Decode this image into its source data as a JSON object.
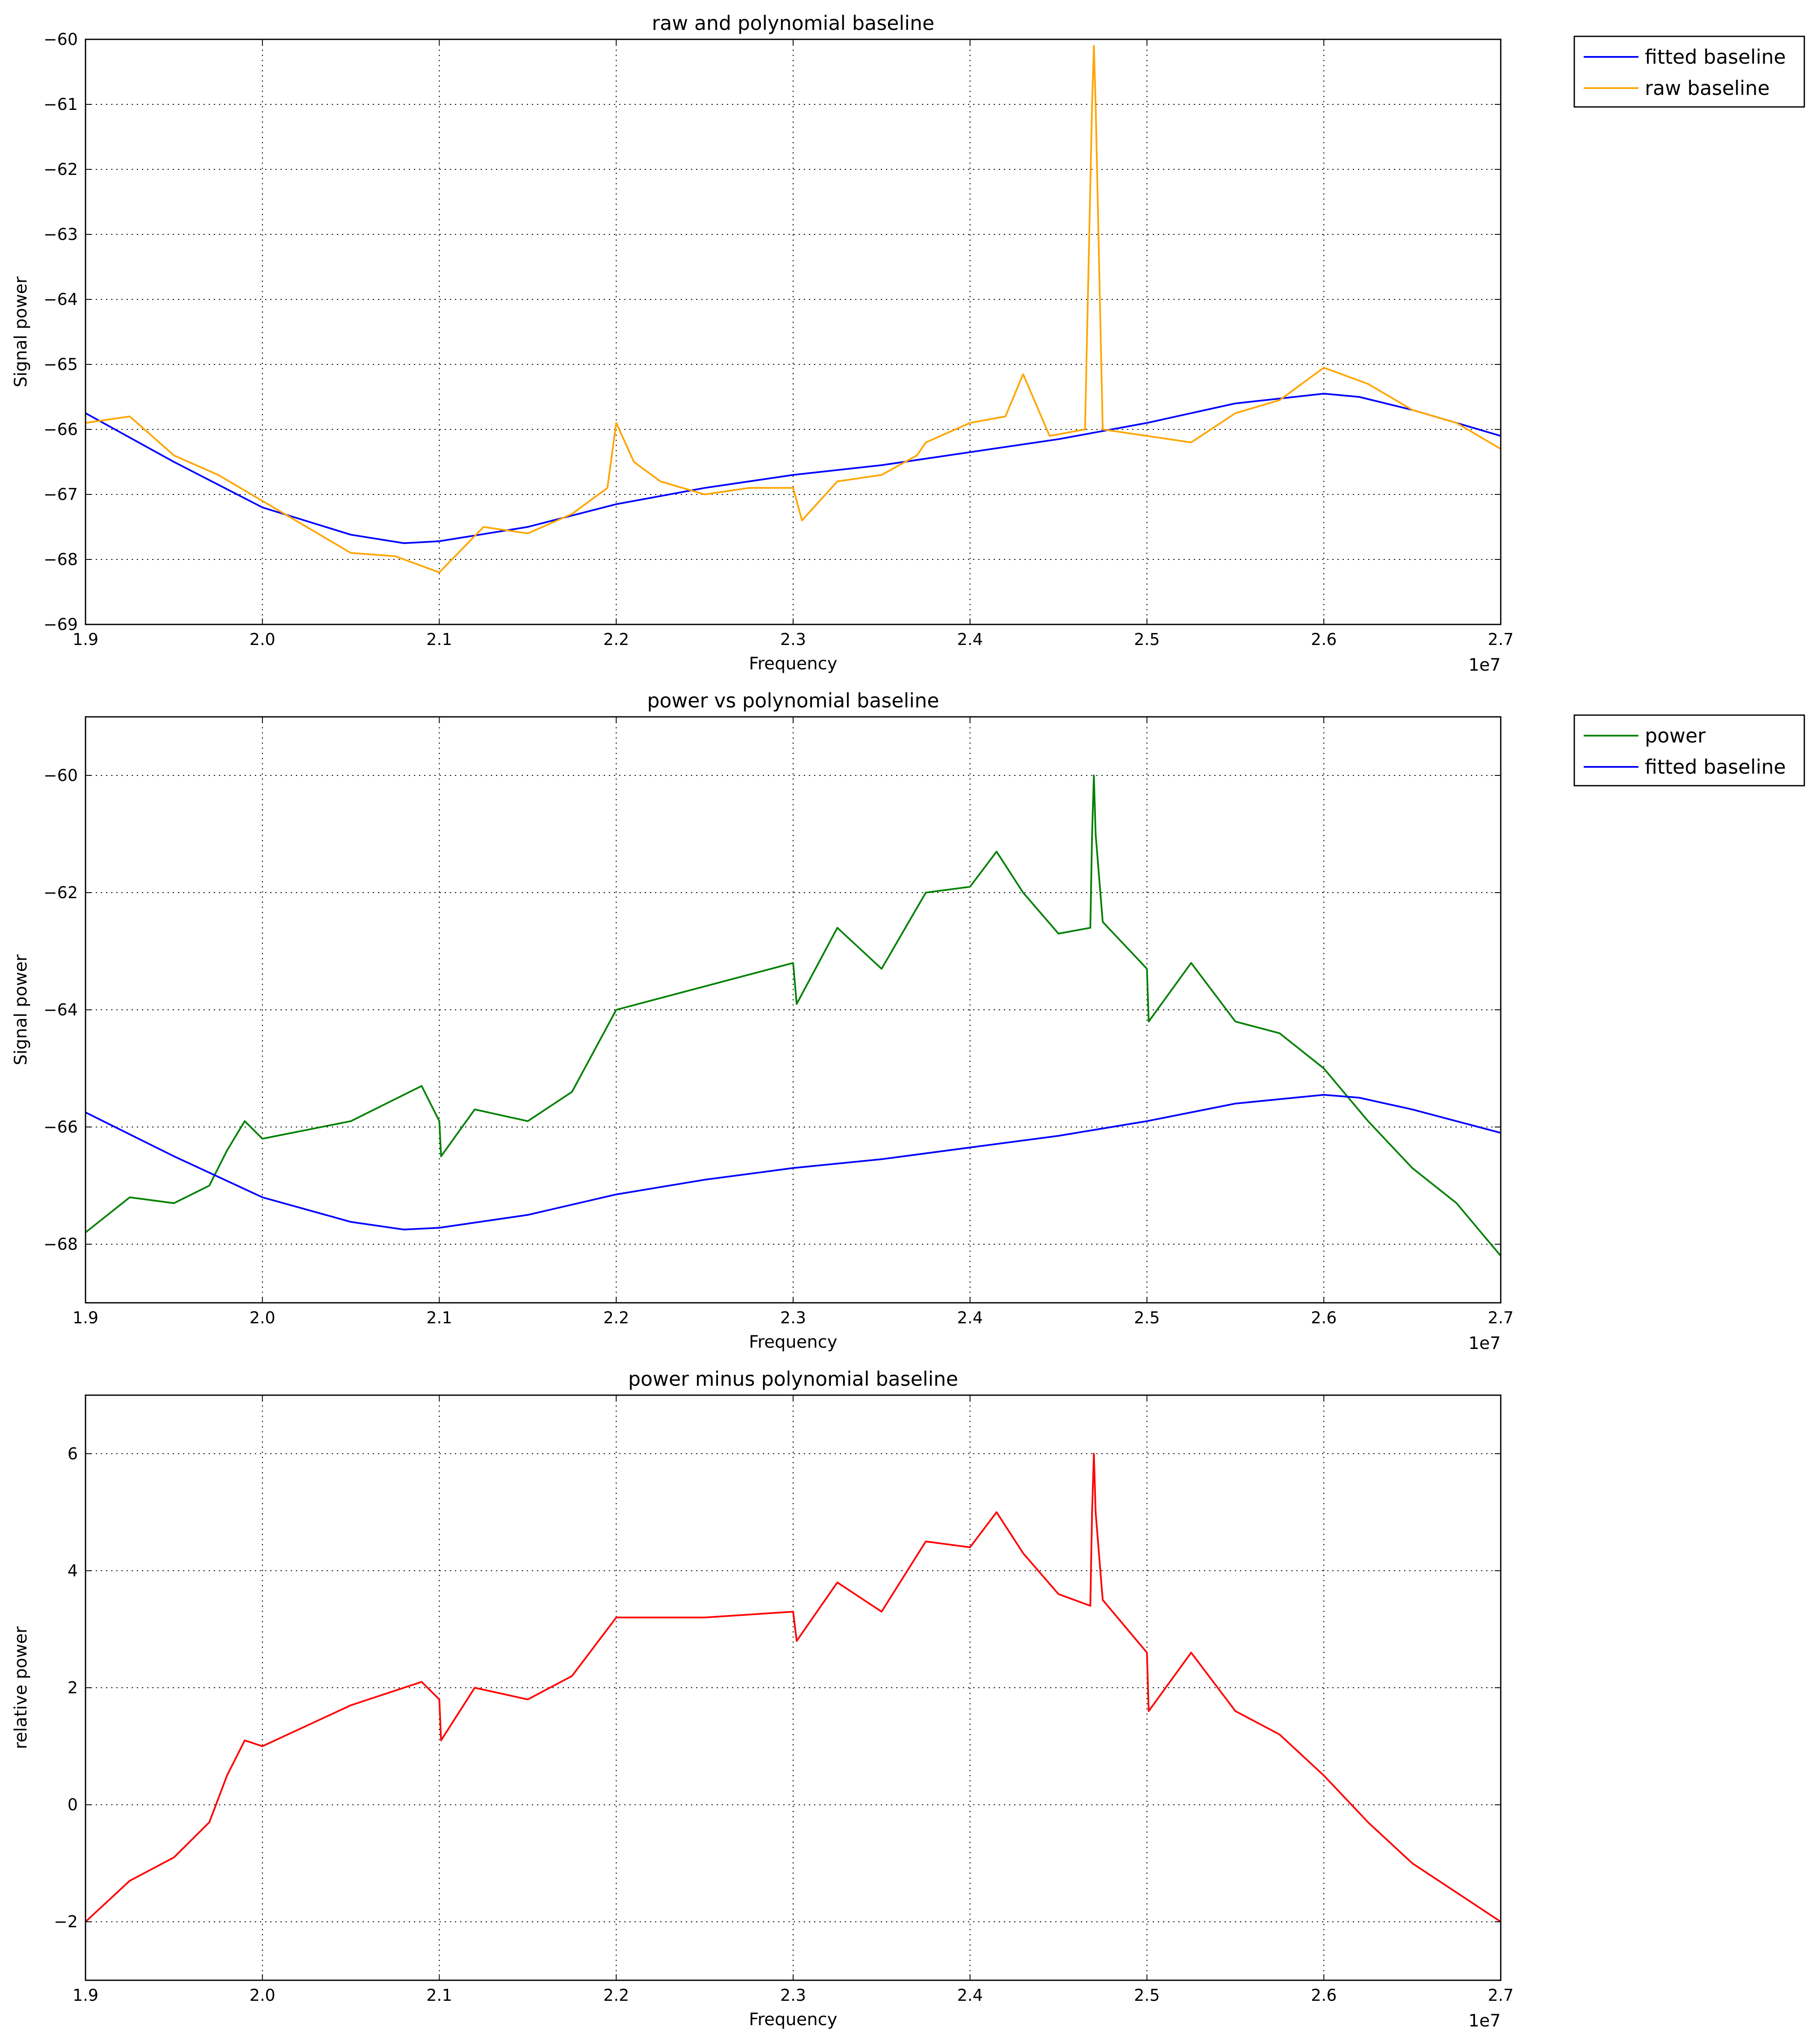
{
  "chart_data": [
    {
      "type": "line",
      "title": "raw and polynomial baseline",
      "xlabel": "Frequency",
      "ylabel": "Signal power",
      "x_offset_label": "1e7",
      "xlim": [
        1.9,
        2.7
      ],
      "ylim": [
        -69,
        -60
      ],
      "x_ticks": [
        1.9,
        2.0,
        2.1,
        2.2,
        2.3,
        2.4,
        2.5,
        2.6,
        2.7
      ],
      "x_tick_labels": [
        "1.9",
        "2.0",
        "2.1",
        "2.2",
        "2.3",
        "2.4",
        "2.5",
        "2.6",
        "2.7"
      ],
      "y_ticks": [
        -69,
        -68,
        -67,
        -66,
        -65,
        -64,
        -63,
        -62,
        -61,
        -60
      ],
      "y_tick_labels": [
        "−69",
        "−68",
        "−67",
        "−66",
        "−65",
        "−64",
        "−63",
        "−62",
        "−61",
        "−60"
      ],
      "grid": true,
      "legend_position": "outside-top-right",
      "series": [
        {
          "name": "fitted baseline",
          "color": "#0000ff",
          "x": [
            1.9,
            1.95,
            2.0,
            2.05,
            2.08,
            2.1,
            2.15,
            2.2,
            2.25,
            2.3,
            2.35,
            2.4,
            2.45,
            2.5,
            2.55,
            2.6,
            2.62,
            2.65,
            2.7
          ],
          "y": [
            -65.75,
            -66.5,
            -67.2,
            -67.62,
            -67.75,
            -67.72,
            -67.5,
            -67.15,
            -66.9,
            -66.7,
            -66.55,
            -66.35,
            -66.15,
            -65.9,
            -65.6,
            -65.45,
            -65.5,
            -65.7,
            -66.1
          ]
        },
        {
          "name": "raw baseline",
          "color": "#ffa500",
          "x": [
            1.9,
            1.925,
            1.95,
            1.975,
            2.0,
            2.025,
            2.05,
            2.075,
            2.1,
            2.125,
            2.15,
            2.175,
            2.195,
            2.2,
            2.21,
            2.225,
            2.25,
            2.275,
            2.3,
            2.305,
            2.325,
            2.35,
            2.37,
            2.375,
            2.4,
            2.42,
            2.43,
            2.445,
            2.465,
            2.469,
            2.47,
            2.471,
            2.475,
            2.5,
            2.525,
            2.55,
            2.575,
            2.6,
            2.625,
            2.65,
            2.675,
            2.7
          ],
          "y": [
            -65.9,
            -65.8,
            -66.4,
            -66.7,
            -67.1,
            -67.5,
            -67.9,
            -67.95,
            -68.2,
            -67.5,
            -67.6,
            -67.3,
            -66.9,
            -65.9,
            -66.5,
            -66.8,
            -67.0,
            -66.9,
            -66.9,
            -67.4,
            -66.8,
            -66.7,
            -66.4,
            -66.2,
            -65.9,
            -65.8,
            -65.15,
            -66.1,
            -66.0,
            -61.0,
            -60.1,
            -61.0,
            -66.0,
            -66.1,
            -66.2,
            -65.75,
            -65.55,
            -65.05,
            -65.3,
            -65.7,
            -65.9,
            -66.3
          ]
        }
      ]
    },
    {
      "type": "line",
      "title": "power vs polynomial baseline",
      "xlabel": "Frequency",
      "ylabel": "Signal power",
      "x_offset_label": "1e7",
      "xlim": [
        1.9,
        2.7
      ],
      "ylim": [
        -69,
        -59
      ],
      "x_ticks": [
        1.9,
        2.0,
        2.1,
        2.2,
        2.3,
        2.4,
        2.5,
        2.6,
        2.7
      ],
      "x_tick_labels": [
        "1.9",
        "2.0",
        "2.1",
        "2.2",
        "2.3",
        "2.4",
        "2.5",
        "2.6",
        "2.7"
      ],
      "y_ticks": [
        -68,
        -66,
        -64,
        -62,
        -60
      ],
      "y_tick_labels": [
        "−68",
        "−66",
        "−64",
        "−62",
        "−60"
      ],
      "grid": true,
      "legend_position": "outside-top-right",
      "series": [
        {
          "name": "power",
          "color": "#008000",
          "x": [
            1.9,
            1.925,
            1.95,
            1.97,
            1.98,
            1.99,
            2.0,
            2.05,
            2.09,
            2.1,
            2.101,
            2.12,
            2.15,
            2.175,
            2.2,
            2.25,
            2.3,
            2.302,
            2.325,
            2.35,
            2.375,
            2.4,
            2.415,
            2.43,
            2.45,
            2.468,
            2.469,
            2.47,
            2.471,
            2.475,
            2.5,
            2.501,
            2.525,
            2.55,
            2.575,
            2.6,
            2.625,
            2.65,
            2.675,
            2.7
          ],
          "y": [
            -67.8,
            -67.2,
            -67.3,
            -67.0,
            -66.4,
            -65.9,
            -66.2,
            -65.9,
            -65.3,
            -65.9,
            -66.5,
            -65.7,
            -65.9,
            -65.4,
            -64.0,
            -63.6,
            -63.2,
            -63.9,
            -62.6,
            -63.3,
            -62.0,
            -61.9,
            -61.3,
            -62.0,
            -62.7,
            -62.6,
            -61.0,
            -60.0,
            -61.0,
            -62.5,
            -63.3,
            -64.2,
            -63.2,
            -64.2,
            -64.4,
            -65.0,
            -65.9,
            -66.7,
            -67.3,
            -68.2
          ]
        },
        {
          "name": "fitted baseline",
          "color": "#0000ff",
          "x": [
            1.9,
            1.95,
            2.0,
            2.05,
            2.08,
            2.1,
            2.15,
            2.2,
            2.25,
            2.3,
            2.35,
            2.4,
            2.45,
            2.5,
            2.55,
            2.6,
            2.62,
            2.65,
            2.7
          ],
          "y": [
            -65.75,
            -66.5,
            -67.2,
            -67.62,
            -67.75,
            -67.72,
            -67.5,
            -67.15,
            -66.9,
            -66.7,
            -66.55,
            -66.35,
            -66.15,
            -65.9,
            -65.6,
            -65.45,
            -65.5,
            -65.7,
            -66.1
          ]
        }
      ]
    },
    {
      "type": "line",
      "title": "power minus polynomial baseline",
      "xlabel": "Frequency",
      "ylabel": "relative power",
      "x_offset_label": "1e7",
      "xlim": [
        1.9,
        2.7
      ],
      "ylim": [
        -3,
        7
      ],
      "x_ticks": [
        1.9,
        2.0,
        2.1,
        2.2,
        2.3,
        2.4,
        2.5,
        2.6,
        2.7
      ],
      "x_tick_labels": [
        "1.9",
        "2.0",
        "2.1",
        "2.2",
        "2.3",
        "2.4",
        "2.5",
        "2.6",
        "2.7"
      ],
      "y_ticks": [
        -2,
        0,
        2,
        4,
        6
      ],
      "y_tick_labels": [
        "−2",
        "0",
        "2",
        "4",
        "6"
      ],
      "grid": true,
      "legend_position": "none",
      "series": [
        {
          "color": "#ff0000",
          "x": [
            1.9,
            1.925,
            1.95,
            1.97,
            1.98,
            1.99,
            2.0,
            2.05,
            2.09,
            2.1,
            2.101,
            2.12,
            2.15,
            2.175,
            2.2,
            2.25,
            2.3,
            2.302,
            2.325,
            2.35,
            2.375,
            2.4,
            2.415,
            2.43,
            2.45,
            2.468,
            2.469,
            2.47,
            2.471,
            2.475,
            2.5,
            2.501,
            2.525,
            2.55,
            2.575,
            2.6,
            2.625,
            2.65,
            2.675,
            2.7
          ],
          "y": [
            -2.0,
            -1.3,
            -0.9,
            -0.3,
            0.5,
            1.1,
            1.0,
            1.7,
            2.1,
            1.8,
            1.1,
            2.0,
            1.8,
            2.2,
            3.2,
            3.2,
            3.3,
            2.8,
            3.8,
            3.3,
            4.5,
            4.4,
            5.0,
            4.3,
            3.6,
            3.4,
            5.0,
            6.0,
            5.0,
            3.5,
            2.6,
            1.6,
            2.6,
            1.6,
            1.2,
            0.5,
            -0.3,
            -1.0,
            -1.5,
            -2.0
          ]
        }
      ]
    }
  ]
}
